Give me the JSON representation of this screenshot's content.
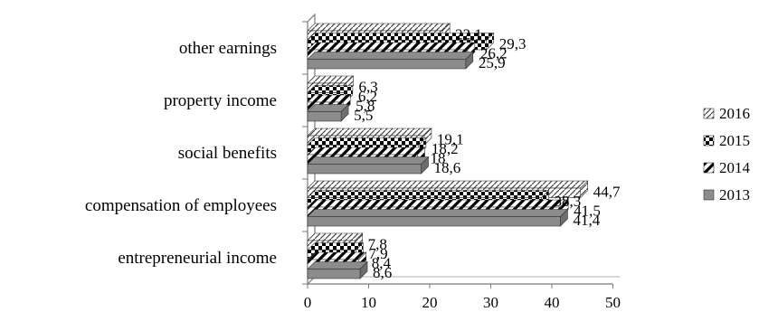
{
  "chart_data": {
    "type": "bar",
    "orientation": "horizontal",
    "style": "3d-clustered-bar",
    "categories": [
      "entrepreneurial income",
      "compensation of employees",
      "social benefits",
      "property income",
      "other earnings"
    ],
    "series": [
      {
        "name": "2013",
        "values": [
          8.6,
          41.4,
          18.6,
          5.5,
          25.9
        ],
        "labels": [
          "8,6",
          "41,4",
          "18,6",
          "5,5",
          "25,9"
        ],
        "pattern": "solid-gray",
        "color": "#8c8c8c"
      },
      {
        "name": "2014",
        "values": [
          8.4,
          41.5,
          18,
          5.8,
          26.2
        ],
        "labels": [
          "8,4",
          "41,5",
          "18",
          "5,8",
          "26,2"
        ],
        "pattern": "diagonal-stripes",
        "color": "#000000"
      },
      {
        "name": "2015",
        "values": [
          7.9,
          38.3,
          18.2,
          6.2,
          29.3
        ],
        "labels": [
          "7,9",
          "38,3",
          "18,2",
          "6,2",
          "29,3"
        ],
        "pattern": "dark-checker",
        "color": "#000000"
      },
      {
        "name": "2016",
        "values": [
          7.8,
          44.7,
          19.1,
          6.3,
          22.1
        ],
        "labels": [
          "7,8",
          "44,7",
          "19,1",
          "6,3",
          "22,1"
        ],
        "pattern": "light-dotted",
        "color": "#555555"
      }
    ],
    "xaxis": {
      "ticks": [
        "0",
        "10",
        "20",
        "30",
        "40",
        "50"
      ],
      "range": [
        0,
        50
      ]
    },
    "grid": false,
    "legend": {
      "placement": "right",
      "order": [
        "2016",
        "2015",
        "2014",
        "2013"
      ]
    }
  }
}
